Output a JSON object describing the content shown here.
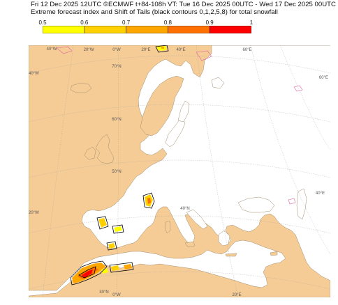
{
  "header": {
    "line1": "Fri 12 Dec 2025 12UTC ©ECMWF t+84-108h  VT: Tue 16 Dec 2025 00UTC - Wed 17 Dec 2025 00UTC",
    "line2": "Extreme forecast index and Shift of Tails (black contours 0,1,2,5,8) for total snowfall"
  },
  "colorbar": {
    "ticks": [
      "0.5",
      "0.6",
      "0.7",
      "0.8",
      "0.9",
      "1"
    ],
    "bins": [
      {
        "range": [
          0.5,
          0.6
        ],
        "color": "#ffff00"
      },
      {
        "range": [
          0.6,
          0.7
        ],
        "color": "#ffd000"
      },
      {
        "range": [
          0.7,
          0.8
        ],
        "color": "#ffa500"
      },
      {
        "range": [
          0.8,
          0.9
        ],
        "color": "#ff7000"
      },
      {
        "range": [
          0.9,
          1.0
        ],
        "color": "#ff0000"
      }
    ]
  },
  "map": {
    "land_color": "#f5cc96",
    "sea_color": "#ffffff",
    "grid_labels": {
      "top": [
        "40°W",
        "20°W",
        "0°W",
        "20°E",
        "40°E",
        "60°E"
      ],
      "left": [
        "40°W",
        "20°W"
      ],
      "right": [
        "60°E",
        "40°E"
      ],
      "bottom": [
        "0°W",
        "20°E"
      ],
      "inner": [
        "70°N",
        "60°N",
        "50°N",
        "40°N",
        "30°N"
      ]
    }
  }
}
